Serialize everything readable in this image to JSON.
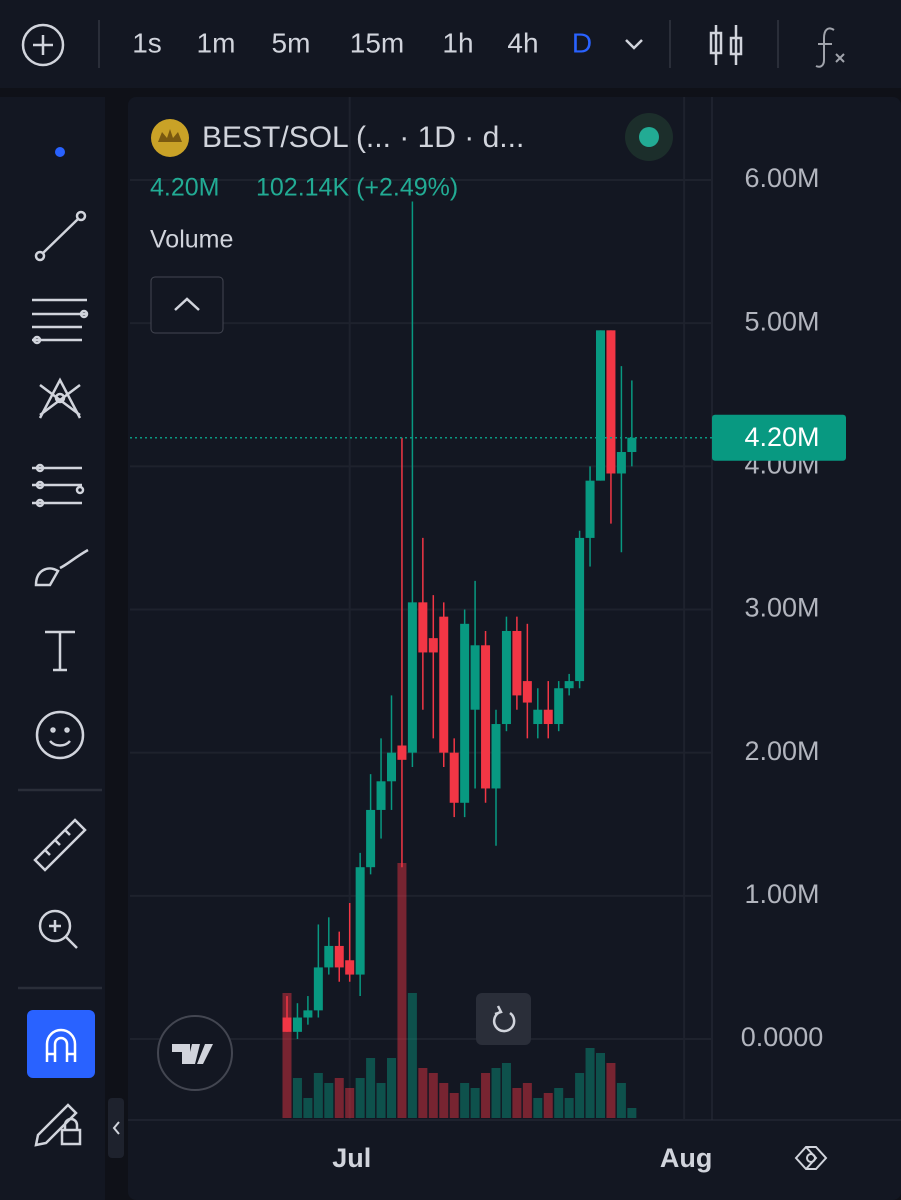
{
  "toolbar": {
    "intervals": [
      "1s",
      "1m",
      "5m",
      "15m",
      "1h",
      "4h",
      "D"
    ]
  },
  "legend": {
    "title": "BEST/SOL (... · 1D · d...",
    "change": "102.14K (+2.49%)",
    "study": "Volume"
  },
  "chart_data": {
    "type": "candlestick",
    "title": "BEST/SOL (... · 1D · d...",
    "categories": [
      null,
      null,
      null,
      null,
      null,
      null,
      "Jul",
      null,
      null,
      null,
      null,
      null,
      null,
      null,
      null,
      null,
      null,
      null,
      null,
      null,
      null,
      null,
      null,
      null,
      null,
      null,
      null,
      null,
      null,
      null,
      null,
      null,
      null,
      null,
      null,
      null,
      null,
      null,
      "Aug"
    ],
    "open": [
      150000,
      50000,
      150000,
      200000,
      500000,
      650000,
      550000,
      450000,
      1200000,
      1600000,
      1800000,
      2050000,
      2000000,
      3050000,
      2800000,
      2950000,
      2000000,
      1650000,
      2300000,
      2750000,
      1750000,
      2200000,
      2850000,
      2500000,
      2200000,
      2300000,
      2200000,
      2450000,
      2500000,
      3500000,
      3900000,
      4950000,
      3950000,
      4100000,
      null,
      null,
      null,
      null,
      null
    ],
    "high": [
      300000,
      250000,
      300000,
      800000,
      850000,
      750000,
      950000,
      1300000,
      1850000,
      2100000,
      2400000,
      4200000,
      5850000,
      3500000,
      3100000,
      3050000,
      2100000,
      3000000,
      3200000,
      2850000,
      2300000,
      2950000,
      2950000,
      2900000,
      2450000,
      2500000,
      2500000,
      2550000,
      3550000,
      4000000,
      4950000,
      4950000,
      4700000,
      4600000,
      null,
      null,
      null,
      null,
      null
    ],
    "low": [
      50000,
      0,
      100000,
      150000,
      450000,
      400000,
      400000,
      300000,
      1150000,
      1400000,
      1600000,
      1200000,
      1900000,
      2300000,
      2100000,
      1900000,
      1550000,
      1550000,
      1750000,
      1650000,
      1350000,
      2150000,
      2300000,
      2100000,
      2100000,
      2100000,
      2150000,
      2400000,
      2450000,
      3300000,
      3900000,
      3600000,
      3400000,
      4000000,
      null,
      null,
      null,
      null,
      null
    ],
    "close": [
      50000,
      150000,
      200000,
      500000,
      650000,
      500000,
      450000,
      1200000,
      1600000,
      1800000,
      2000000,
      1950000,
      3050000,
      2700000,
      2700000,
      2000000,
      1650000,
      2900000,
      2750000,
      1750000,
      2200000,
      2850000,
      2400000,
      2350000,
      2300000,
      2200000,
      2450000,
      2500000,
      3500000,
      3900000,
      4950000,
      3950000,
      4100000,
      4200000,
      null,
      null,
      null,
      null,
      null
    ],
    "volume": [
      125,
      40,
      20,
      45,
      35,
      40,
      30,
      40,
      60,
      35,
      60,
      255,
      125,
      50,
      45,
      35,
      25,
      35,
      30,
      45,
      50,
      55,
      30,
      35,
      20,
      25,
      30,
      20,
      45,
      70,
      65,
      55,
      35,
      10,
      null,
      null,
      null,
      null,
      null
    ],
    "up_color": "#089981",
    "down_color": "#f23645",
    "ylim": [
      -550000,
      6300000
    ],
    "yticks": [
      {
        "value": 0,
        "label": "0.0000"
      },
      {
        "value": 1000000,
        "label": "1.00M"
      },
      {
        "value": 2000000,
        "label": "2.00M"
      },
      {
        "value": 3000000,
        "label": "3.00M"
      },
      {
        "value": 4000000,
        "label": "4.00M"
      },
      {
        "value": 5000000,
        "label": "5.00M"
      },
      {
        "value": 6000000,
        "label": "6.00M"
      }
    ],
    "price_line": {
      "value": 4200000,
      "label": "4.20M"
    },
    "grid": true
  }
}
